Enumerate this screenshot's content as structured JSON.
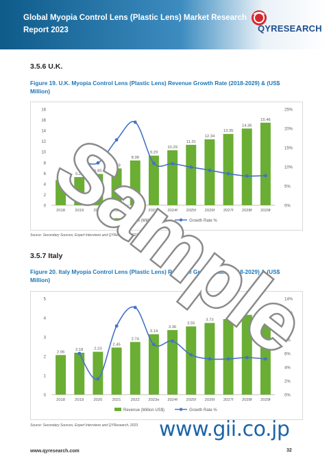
{
  "header": {
    "title": "Global Myopia Control Lens (Plastic Lens) Market Research Report 2023",
    "logo_text": "QYRESEARCH"
  },
  "sections": [
    {
      "heading": "3.5.6  U.K.",
      "figure_caption": "Figure 19.  U.K. Myopia Control Lens (Plastic Lens) Revenue Growth Rate (2018-2029) & (US$ Million)",
      "source": "Source: Secondary Sources, Expert Interviews and QYResearch, 2023"
    },
    {
      "heading": "3.5.7  Italy",
      "figure_caption": "Figure 20.  Italy Myopia Control Lens (Plastic Lens) Revenue Growth Rate (2018-2029) & (US$ Million)",
      "source": "Source: Secondary Sources, Expert Interviews and QYResearch, 2023"
    }
  ],
  "chart_data": [
    {
      "type": "bar",
      "categories": [
        "2018",
        "2019",
        "2020",
        "2021",
        "2022",
        "2023e",
        "2024f",
        "2025f",
        "2026f",
        "2027f",
        "2028f",
        "2029f"
      ],
      "series": [
        {
          "name": "Revenue (Million US$)",
          "type": "bar",
          "axis": "left",
          "color": "#6aae34",
          "values": [
            4.72,
            5.27,
            5.85,
            6.89,
            8.38,
            9.29,
            10.29,
            11.31,
            12.34,
            13.35,
            14.36,
            15.46
          ],
          "labels": [
            "4.72",
            "5.27",
            "5.85",
            "6.89",
            "8.38",
            "9.29",
            "10.29",
            "11.31",
            "12.34",
            "13.35",
            "14.36",
            "15.46"
          ]
        },
        {
          "name": "Growth Rate %",
          "type": "line",
          "axis": "right",
          "color": "#4472c4",
          "values": [
            null,
            11.6,
            11.0,
            17.0,
            21.6,
            10.9,
            10.8,
            9.9,
            9.1,
            8.2,
            7.6,
            7.7
          ]
        }
      ],
      "y_left": {
        "min": 0,
        "max": 18,
        "ticks": [
          "0",
          "2",
          "4",
          "6",
          "8",
          "10",
          "12",
          "14",
          "16",
          "18"
        ]
      },
      "y_right": {
        "min": 0,
        "max": 25,
        "ticks": [
          "0%",
          "5%",
          "10%",
          "15%",
          "20%",
          "25%"
        ]
      },
      "grid": false,
      "legend": "bottom"
    },
    {
      "type": "bar",
      "categories": [
        "2018",
        "2019",
        "2020",
        "2021",
        "2022",
        "2023e",
        "2024f",
        "2025f",
        "2026f",
        "2027f",
        "2028f",
        "2029f"
      ],
      "series": [
        {
          "name": "Revenue (Million US$)",
          "type": "bar",
          "axis": "left",
          "color": "#6aae34",
          "values": [
            2.06,
            2.18,
            2.23,
            2.45,
            2.74,
            3.14,
            3.36,
            3.55,
            3.73,
            3.93,
            4.15,
            4.38
          ],
          "labels": [
            "2.06",
            "2.18",
            "2.23",
            "2.45",
            "2.74",
            "3.14",
            "3.36",
            "3.55",
            "3.73",
            "",
            "",
            ""
          ]
        },
        {
          "name": "Growth Rate %",
          "type": "line",
          "axis": "right",
          "color": "#4472c4",
          "values": [
            null,
            6.0,
            2.3,
            10.0,
            12.7,
            7.3,
            7.8,
            5.8,
            5.2,
            5.2,
            5.4,
            5.2
          ]
        }
      ],
      "y_left": {
        "min": 0,
        "max": 5,
        "ticks": [
          "0",
          "1",
          "2",
          "3",
          "4",
          "5"
        ]
      },
      "y_right": {
        "min": 0,
        "max": 14,
        "ticks": [
          "0%",
          "2%",
          "4%",
          "6%",
          "8%",
          "10%",
          "12%",
          "14%"
        ]
      },
      "grid": false,
      "legend": "bottom"
    }
  ],
  "watermark": {
    "text": "Sample"
  },
  "footer": {
    "website": "www.qyresearch.com",
    "page_number": "32",
    "gii_url": "www.gii.co.jp"
  }
}
